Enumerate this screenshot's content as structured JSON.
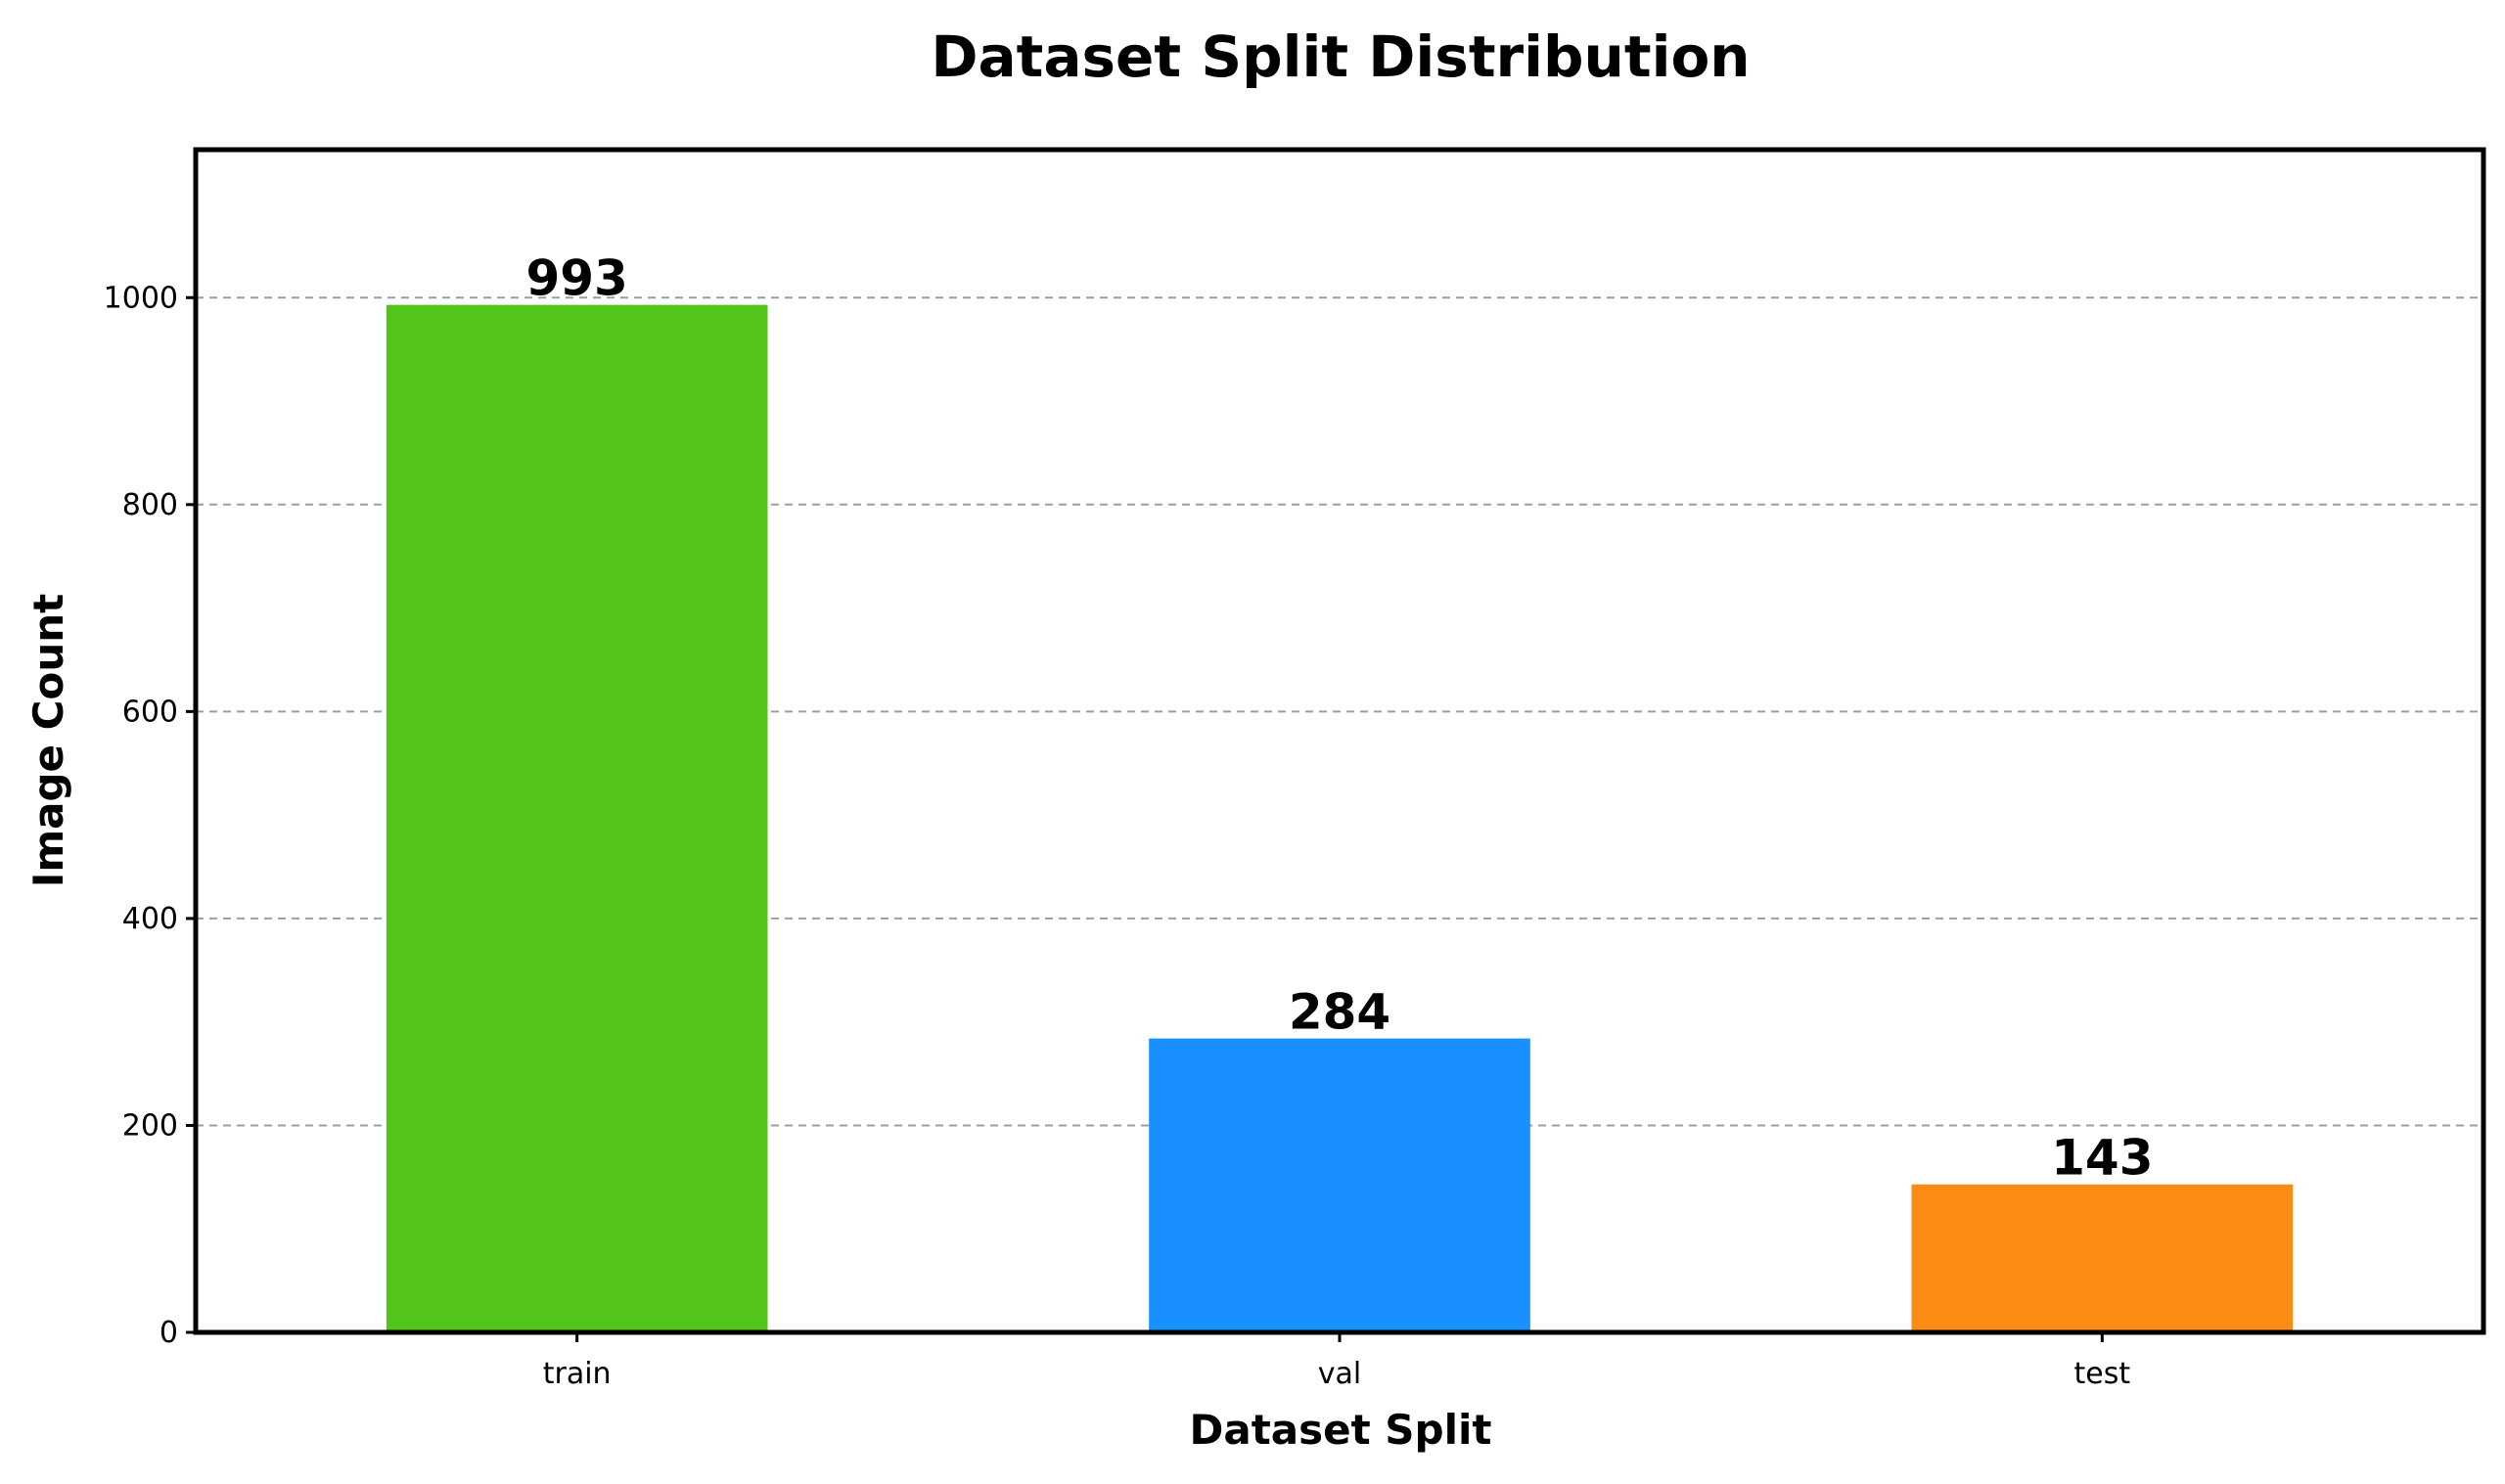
{
  "chart_data": {
    "type": "bar",
    "title": "Dataset Split Distribution",
    "xlabel": "Dataset Split",
    "ylabel": "Image Count",
    "categories": [
      "train",
      "val",
      "test"
    ],
    "values": [
      993,
      284,
      143
    ],
    "data_labels": [
      "993",
      "284",
      "143"
    ],
    "colors": [
      "#52c41a",
      "#1890ff",
      "#fa8c16"
    ],
    "ylim": [
      0,
      1143
    ],
    "yticks": [
      0,
      200,
      400,
      600,
      800,
      1000
    ],
    "ytick_labels": [
      "0",
      "200",
      "400",
      "600",
      "800",
      "1000"
    ],
    "grid": true,
    "grid_axis": "y"
  }
}
